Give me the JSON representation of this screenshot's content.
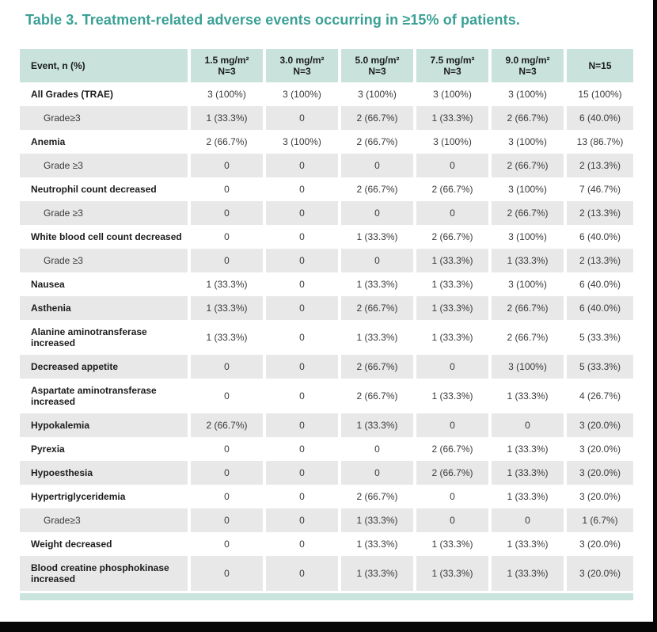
{
  "title": "Table 3.  Treatment-related adverse events occurring in ≥15% of patients.",
  "colors": {
    "title_text": "#3aa095",
    "header_bg": "#c9e3dc",
    "row_alt_bg": "#e8e8e8",
    "accent_bar": "#cbe5de",
    "frame": "#060606"
  },
  "table": {
    "columns": [
      {
        "label": "Event, n (%)"
      },
      {
        "dose": "1.5 mg/m²",
        "n": "N=3"
      },
      {
        "dose": "3.0 mg/m²",
        "n": "N=3"
      },
      {
        "dose": "5.0 mg/m²",
        "n": "N=3"
      },
      {
        "dose": "7.5 mg/m²",
        "n": "N=3"
      },
      {
        "dose": "9.0 mg/m²",
        "n": "N=3"
      },
      {
        "n": "N=15"
      }
    ],
    "rows": [
      {
        "label": "All Grades (TRAE)",
        "sub": false,
        "values": [
          "3 (100%)",
          "3 (100%)",
          "3 (100%)",
          "3 (100%)",
          "3 (100%)",
          "15 (100%)"
        ]
      },
      {
        "label": "Grade≥3",
        "sub": true,
        "values": [
          "1 (33.3%)",
          "0",
          "2 (66.7%)",
          "1 (33.3%)",
          "2 (66.7%)",
          "6 (40.0%)"
        ]
      },
      {
        "label": "Anemia",
        "sub": false,
        "values": [
          "2 (66.7%)",
          "3 (100%)",
          "2 (66.7%)",
          "3 (100%)",
          "3 (100%)",
          "13 (86.7%)"
        ]
      },
      {
        "label": "Grade ≥3",
        "sub": true,
        "values": [
          "0",
          "0",
          "0",
          "0",
          "2 (66.7%)",
          "2 (13.3%)"
        ]
      },
      {
        "label": "Neutrophil count decreased",
        "sub": false,
        "values": [
          "0",
          "0",
          "2 (66.7%)",
          "2 (66.7%)",
          "3 (100%)",
          "7 (46.7%)"
        ]
      },
      {
        "label": "Grade ≥3",
        "sub": true,
        "values": [
          "0",
          "0",
          "0",
          "0",
          "2 (66.7%)",
          "2 (13.3%)"
        ]
      },
      {
        "label": "White blood cell count decreased",
        "sub": false,
        "values": [
          "0",
          "0",
          "1 (33.3%)",
          "2 (66.7%)",
          "3 (100%)",
          "6 (40.0%)"
        ]
      },
      {
        "label": "Grade ≥3",
        "sub": true,
        "values": [
          "0",
          "0",
          "0",
          "1 (33.3%)",
          "1 (33.3%)",
          "2 (13.3%)"
        ]
      },
      {
        "label": "Nausea",
        "sub": false,
        "values": [
          "1 (33.3%)",
          "0",
          "1 (33.3%)",
          "1 (33.3%)",
          "3 (100%)",
          "6 (40.0%)"
        ]
      },
      {
        "label": "Asthenia",
        "sub": false,
        "values": [
          "1 (33.3%)",
          "0",
          "2 (66.7%)",
          "1 (33.3%)",
          "2 (66.7%)",
          "6 (40.0%)"
        ]
      },
      {
        "label": "Alanine aminotransferase increased",
        "sub": false,
        "values": [
          "1 (33.3%)",
          "0",
          "1 (33.3%)",
          "1 (33.3%)",
          "2 (66.7%)",
          "5 (33.3%)"
        ]
      },
      {
        "label": "Decreased appetite",
        "sub": false,
        "values": [
          "0",
          "0",
          "2 (66.7%)",
          "0",
          "3 (100%)",
          "5 (33.3%)"
        ]
      },
      {
        "label": "Aspartate aminotransferase increased",
        "sub": false,
        "values": [
          "0",
          "0",
          "2 (66.7%)",
          "1 (33.3%)",
          "1 (33.3%)",
          "4 (26.7%)"
        ]
      },
      {
        "label": "Hypokalemia",
        "sub": false,
        "values": [
          "2 (66.7%)",
          "0",
          "1 (33.3%)",
          "0",
          "0",
          "3 (20.0%)"
        ]
      },
      {
        "label": "Pyrexia",
        "sub": false,
        "values": [
          "0",
          "0",
          "0",
          "2 (66.7%)",
          "1 (33.3%)",
          "3 (20.0%)"
        ]
      },
      {
        "label": "Hypoesthesia",
        "sub": false,
        "values": [
          "0",
          "0",
          "0",
          "2 (66.7%)",
          "1 (33.3%)",
          "3 (20.0%)"
        ]
      },
      {
        "label": "Hypertriglyceridemia",
        "sub": false,
        "values": [
          "0",
          "0",
          "2 (66.7%)",
          "0",
          "1 (33.3%)",
          "3 (20.0%)"
        ]
      },
      {
        "label": "Grade≥3",
        "sub": true,
        "values": [
          "0",
          "0",
          "1 (33.3%)",
          "0",
          "0",
          "1 (6.7%)"
        ]
      },
      {
        "label": "Weight decreased",
        "sub": false,
        "values": [
          "0",
          "0",
          "1 (33.3%)",
          "1 (33.3%)",
          "1 (33.3%)",
          "3 (20.0%)"
        ]
      },
      {
        "label": "Blood creatine phosphokinase increased",
        "sub": false,
        "values": [
          "0",
          "0",
          "1 (33.3%)",
          "1 (33.3%)",
          "1 (33.3%)",
          "3 (20.0%)"
        ]
      }
    ]
  }
}
